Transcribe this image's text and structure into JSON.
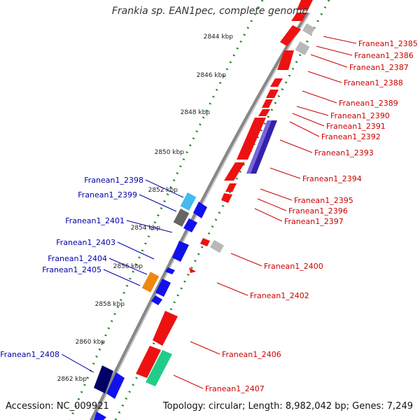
{
  "title": "Frankia sp. EAN1pec, complete genome",
  "footer": {
    "accession": "Accession: NC_009921",
    "summary": "Topology: circular; Length: 8,982,042 bp; Genes: 7,249"
  },
  "colors": {
    "forward_gene": "#ee1111",
    "reverse_gene": "#1111ee",
    "forward_label": "#cc0000",
    "reverse_label": "#0000aa",
    "tick": "#228822",
    "backbone": "#888888"
  },
  "scale_ticks": [
    {
      "label": "2844 kbp"
    },
    {
      "label": "2846 kbp"
    },
    {
      "label": "2848 kbp"
    },
    {
      "label": "2850 kbp"
    },
    {
      "label": "2852 kbp"
    },
    {
      "label": "2854 kbp"
    },
    {
      "label": "2856 kbp"
    },
    {
      "label": "2858 kbp"
    },
    {
      "label": "2860 kbp"
    },
    {
      "label": "2862 kbp"
    }
  ],
  "forward_genes": [
    {
      "label": "Franean1_2385"
    },
    {
      "label": "Franean1_2386"
    },
    {
      "label": "Franean1_2387"
    },
    {
      "label": "Franean1_2388"
    },
    {
      "label": "Franean1_2389"
    },
    {
      "label": "Franean1_2390"
    },
    {
      "label": "Franean1_2391"
    },
    {
      "label": "Franean1_2392"
    },
    {
      "label": "Franean1_2393"
    },
    {
      "label": "Franean1_2394"
    },
    {
      "label": "Franean1_2395"
    },
    {
      "label": "Franean1_2396"
    },
    {
      "label": "Franean1_2397"
    },
    {
      "label": "Franean1_2400"
    },
    {
      "label": "Franean1_2402"
    },
    {
      "label": "Franean1_2406"
    },
    {
      "label": "Franean1_2407"
    }
  ],
  "reverse_genes": [
    {
      "label": "Franean1_2398"
    },
    {
      "label": "Franean1_2399"
    },
    {
      "label": "Franean1_2401"
    },
    {
      "label": "Franean1_2403"
    },
    {
      "label": "Franean1_2404"
    },
    {
      "label": "Franean1_2405"
    },
    {
      "label": "Franean1_2408"
    }
  ]
}
